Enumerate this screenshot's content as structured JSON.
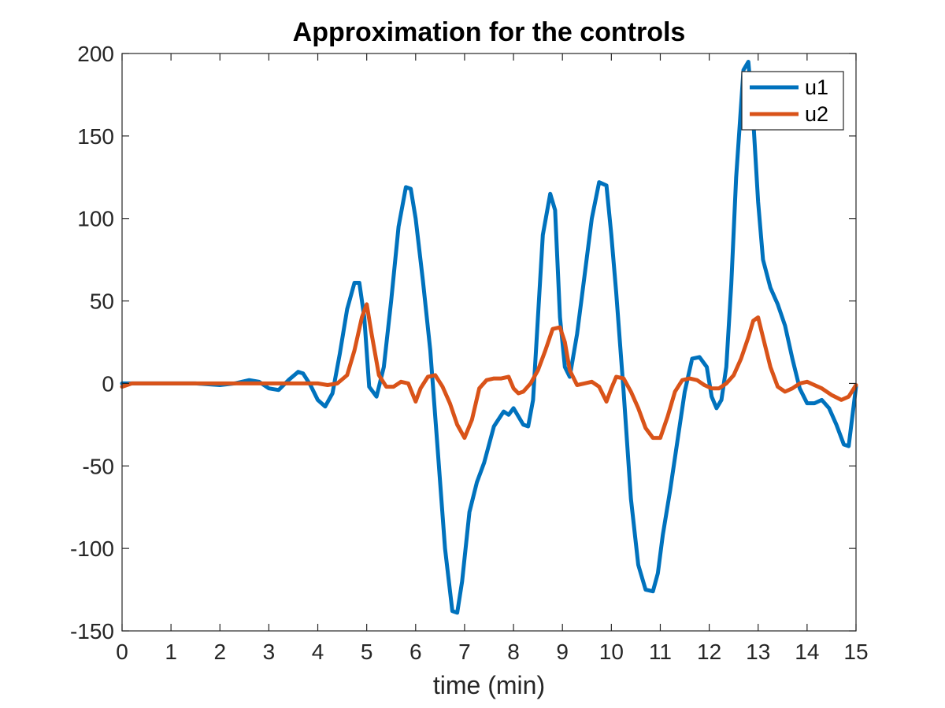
{
  "chart_data": {
    "type": "line",
    "title": "Approximation for the controls",
    "xlabel": "time (min)",
    "ylabel": "",
    "xlim": [
      0,
      15
    ],
    "ylim": [
      -150,
      200
    ],
    "xticks": [
      0,
      1,
      2,
      3,
      4,
      5,
      6,
      7,
      8,
      9,
      10,
      11,
      12,
      13,
      14,
      15
    ],
    "yticks": [
      200,
      150,
      100,
      50,
      0,
      -50,
      -100,
      -150
    ],
    "grid": false,
    "legend_position": "top-right",
    "series": [
      {
        "name": "u1",
        "color": "#0072BD",
        "x": [
          0,
          0.5,
          1,
          1.5,
          2,
          2.3,
          2.6,
          2.8,
          3.0,
          3.2,
          3.4,
          3.6,
          3.7,
          3.85,
          4.0,
          4.15,
          4.3,
          4.45,
          4.6,
          4.75,
          4.85,
          4.95,
          5.05,
          5.2,
          5.35,
          5.5,
          5.65,
          5.8,
          5.9,
          6.0,
          6.15,
          6.3,
          6.45,
          6.6,
          6.75,
          6.85,
          6.95,
          7.1,
          7.25,
          7.4,
          7.6,
          7.8,
          7.9,
          8.0,
          8.1,
          8.2,
          8.3,
          8.4,
          8.5,
          8.6,
          8.75,
          8.85,
          8.95,
          9.05,
          9.15,
          9.3,
          9.45,
          9.6,
          9.75,
          9.9,
          10.0,
          10.1,
          10.25,
          10.4,
          10.55,
          10.7,
          10.85,
          10.95,
          11.05,
          11.2,
          11.35,
          11.5,
          11.65,
          11.8,
          11.95,
          12.05,
          12.15,
          12.25,
          12.35,
          12.45,
          12.55,
          12.7,
          12.8,
          12.9,
          13.0,
          13.1,
          13.25,
          13.4,
          13.55,
          13.7,
          13.85,
          14.0,
          14.15,
          14.3,
          14.45,
          14.6,
          14.75,
          14.85,
          15.0
        ],
        "y": [
          0,
          0,
          0,
          0,
          -1,
          0,
          2,
          1,
          -3,
          -4,
          2,
          7,
          6,
          -1,
          -10,
          -14,
          -6,
          18,
          45,
          61,
          61,
          40,
          -2,
          -8,
          10,
          50,
          95,
          119,
          118,
          100,
          62,
          20,
          -40,
          -100,
          -138,
          -139,
          -120,
          -78,
          -60,
          -48,
          -26,
          -17,
          -19,
          -15,
          -20,
          -25,
          -26,
          -10,
          40,
          90,
          115,
          105,
          40,
          10,
          4,
          30,
          65,
          100,
          122,
          120,
          90,
          55,
          -5,
          -70,
          -110,
          -125,
          -126,
          -115,
          -92,
          -65,
          -35,
          -5,
          15,
          16,
          10,
          -8,
          -15,
          -10,
          10,
          60,
          125,
          190,
          195,
          160,
          110,
          75,
          58,
          48,
          35,
          15,
          -3,
          -12,
          -12,
          -10,
          -15,
          -25,
          -37,
          -38,
          -2
        ]
      },
      {
        "name": "u2",
        "color": "#D95319",
        "x": [
          0,
          0.2,
          0.5,
          1,
          1.5,
          2,
          2.5,
          3,
          3.5,
          4.0,
          4.2,
          4.4,
          4.6,
          4.75,
          4.9,
          5.0,
          5.1,
          5.25,
          5.4,
          5.55,
          5.7,
          5.85,
          6.0,
          6.1,
          6.25,
          6.4,
          6.55,
          6.7,
          6.85,
          7.0,
          7.15,
          7.3,
          7.45,
          7.6,
          7.75,
          7.9,
          8.0,
          8.1,
          8.2,
          8.35,
          8.5,
          8.65,
          8.8,
          8.95,
          9.05,
          9.15,
          9.3,
          9.45,
          9.6,
          9.75,
          9.9,
          10.0,
          10.1,
          10.25,
          10.4,
          10.55,
          10.7,
          10.85,
          11.0,
          11.15,
          11.3,
          11.45,
          11.6,
          11.75,
          11.9,
          12.05,
          12.2,
          12.35,
          12.5,
          12.65,
          12.8,
          12.9,
          13.0,
          13.1,
          13.25,
          13.4,
          13.55,
          13.7,
          13.85,
          14.0,
          14.15,
          14.3,
          14.5,
          14.7,
          14.85,
          15.0
        ],
        "y": [
          -2,
          0,
          0,
          0,
          0,
          0,
          0,
          0,
          0,
          0,
          -1,
          0,
          5,
          20,
          40,
          48,
          30,
          5,
          -2,
          -2,
          1,
          0,
          -11,
          -3,
          4,
          5,
          -2,
          -12,
          -25,
          -33,
          -22,
          -3,
          2,
          3,
          3,
          4,
          -3,
          -6,
          -5,
          0,
          8,
          20,
          33,
          34,
          25,
          8,
          -1,
          0,
          1,
          -2,
          -11,
          -3,
          4,
          3,
          -5,
          -15,
          -27,
          -33,
          -33,
          -20,
          -5,
          2,
          3,
          2,
          -1,
          -3,
          -3,
          0,
          5,
          15,
          28,
          38,
          40,
          28,
          10,
          -2,
          -5,
          -3,
          0,
          1,
          -1,
          -3,
          -7,
          -10,
          -8,
          -1
        ]
      }
    ]
  }
}
